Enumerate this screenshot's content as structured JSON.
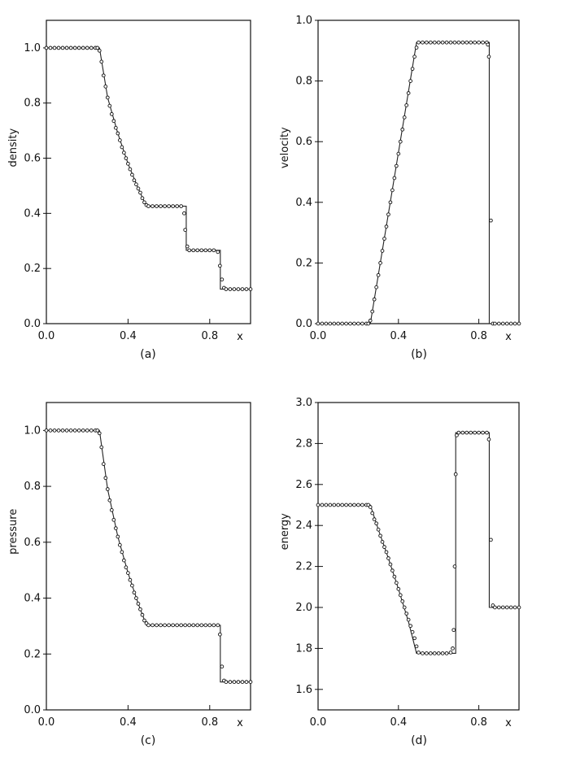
{
  "chart_data": [
    {
      "type": "line",
      "caption": "(a)",
      "xlabel": "x",
      "ylabel": "density",
      "xlim": [
        0.0,
        1.0
      ],
      "ylim": [
        0.0,
        1.1
      ],
      "xticks": [
        0.0,
        0.4,
        0.8
      ],
      "xtick_labels": [
        "0.0",
        "0.4",
        "0.8"
      ],
      "yticks": [
        0.0,
        0.2,
        0.4,
        0.6,
        0.8,
        1.0
      ],
      "ytick_labels": [
        "0.0",
        "0.2",
        "0.4",
        "0.6",
        "0.8",
        "1.0"
      ],
      "series": [
        {
          "style": "solid-line",
          "x": [
            0.0,
            0.26,
            0.3,
            0.35,
            0.4,
            0.45,
            0.49,
            0.685,
            0.685,
            0.852,
            0.852,
            1.0
          ],
          "y": [
            1.0,
            1.0,
            0.82,
            0.69,
            0.58,
            0.49,
            0.426,
            0.426,
            0.266,
            0.266,
            0.125,
            0.125
          ]
        },
        {
          "style": "open-circle-markers",
          "x": [
            0.0,
            0.02,
            0.04,
            0.06,
            0.08,
            0.1,
            0.12,
            0.14,
            0.16,
            0.18,
            0.2,
            0.22,
            0.24,
            0.25,
            0.26,
            0.27,
            0.28,
            0.29,
            0.3,
            0.31,
            0.32,
            0.33,
            0.34,
            0.35,
            0.36,
            0.37,
            0.38,
            0.39,
            0.4,
            0.41,
            0.42,
            0.43,
            0.44,
            0.45,
            0.46,
            0.47,
            0.48,
            0.49,
            0.5,
            0.52,
            0.54,
            0.56,
            0.58,
            0.6,
            0.62,
            0.64,
            0.66,
            0.675,
            0.68,
            0.69,
            0.7,
            0.72,
            0.74,
            0.76,
            0.78,
            0.8,
            0.82,
            0.84,
            0.85,
            0.86,
            0.87,
            0.88,
            0.9,
            0.92,
            0.94,
            0.96,
            0.98,
            1.0
          ],
          "y": [
            1.0,
            1.0,
            1.0,
            1.0,
            1.0,
            1.0,
            1.0,
            1.0,
            1.0,
            1.0,
            1.0,
            1.0,
            1.0,
            1.0,
            0.99,
            0.95,
            0.9,
            0.86,
            0.82,
            0.79,
            0.76,
            0.735,
            0.71,
            0.69,
            0.665,
            0.64,
            0.62,
            0.6,
            0.58,
            0.56,
            0.54,
            0.52,
            0.505,
            0.49,
            0.475,
            0.455,
            0.44,
            0.43,
            0.426,
            0.426,
            0.426,
            0.426,
            0.426,
            0.426,
            0.426,
            0.426,
            0.426,
            0.4,
            0.34,
            0.28,
            0.266,
            0.266,
            0.266,
            0.266,
            0.266,
            0.266,
            0.266,
            0.26,
            0.21,
            0.16,
            0.13,
            0.125,
            0.125,
            0.125,
            0.125,
            0.125,
            0.125,
            0.125
          ]
        }
      ]
    },
    {
      "type": "line",
      "caption": "(b)",
      "xlabel": "x",
      "ylabel": "velocity",
      "xlim": [
        0.0,
        1.0
      ],
      "ylim": [
        0.0,
        1.0
      ],
      "xticks": [
        0.0,
        0.4,
        0.8
      ],
      "xtick_labels": [
        "0.0",
        "0.4",
        "0.8"
      ],
      "yticks": [
        0.0,
        0.2,
        0.4,
        0.6,
        0.8,
        1.0
      ],
      "ytick_labels": [
        "0.0",
        "0.2",
        "0.4",
        "0.6",
        "0.8",
        "1.0"
      ],
      "series": [
        {
          "style": "solid-line",
          "x": [
            0.0,
            0.26,
            0.49,
            0.852,
            0.852,
            1.0
          ],
          "y": [
            0.0,
            0.0,
            0.927,
            0.927,
            0.0,
            0.0
          ]
        },
        {
          "style": "open-circle-markers",
          "x": [
            0.0,
            0.02,
            0.04,
            0.06,
            0.08,
            0.1,
            0.12,
            0.14,
            0.16,
            0.18,
            0.2,
            0.22,
            0.24,
            0.25,
            0.26,
            0.27,
            0.28,
            0.29,
            0.3,
            0.31,
            0.32,
            0.33,
            0.34,
            0.35,
            0.36,
            0.37,
            0.38,
            0.39,
            0.4,
            0.41,
            0.42,
            0.43,
            0.44,
            0.45,
            0.46,
            0.47,
            0.48,
            0.49,
            0.5,
            0.52,
            0.54,
            0.56,
            0.58,
            0.6,
            0.62,
            0.64,
            0.66,
            0.68,
            0.7,
            0.72,
            0.74,
            0.76,
            0.78,
            0.8,
            0.82,
            0.84,
            0.845,
            0.85,
            0.86,
            0.87,
            0.88,
            0.9,
            0.92,
            0.94,
            0.96,
            0.98,
            1.0
          ],
          "y": [
            0.0,
            0.0,
            0.0,
            0.0,
            0.0,
            0.0,
            0.0,
            0.0,
            0.0,
            0.0,
            0.0,
            0.0,
            0.0,
            0.0,
            0.01,
            0.04,
            0.08,
            0.12,
            0.16,
            0.2,
            0.24,
            0.28,
            0.32,
            0.36,
            0.4,
            0.44,
            0.48,
            0.52,
            0.56,
            0.6,
            0.64,
            0.68,
            0.72,
            0.76,
            0.8,
            0.84,
            0.88,
            0.91,
            0.927,
            0.927,
            0.927,
            0.927,
            0.927,
            0.927,
            0.927,
            0.927,
            0.927,
            0.927,
            0.927,
            0.927,
            0.927,
            0.927,
            0.927,
            0.927,
            0.927,
            0.927,
            0.92,
            0.88,
            0.34,
            0.0,
            0.0,
            0.0,
            0.0,
            0.0,
            0.0,
            0.0,
            0.0
          ]
        }
      ]
    },
    {
      "type": "line",
      "caption": "(c)",
      "xlabel": "x",
      "ylabel": "pressure",
      "xlim": [
        0.0,
        1.0
      ],
      "ylim": [
        0.0,
        1.1
      ],
      "xticks": [
        0.0,
        0.4,
        0.8
      ],
      "xtick_labels": [
        "0.0",
        "0.4",
        "0.8"
      ],
      "yticks": [
        0.0,
        0.2,
        0.4,
        0.6,
        0.8,
        1.0
      ],
      "ytick_labels": [
        "0.0",
        "0.2",
        "0.4",
        "0.6",
        "0.8",
        "1.0"
      ],
      "series": [
        {
          "style": "solid-line",
          "x": [
            0.0,
            0.26,
            0.3,
            0.35,
            0.4,
            0.45,
            0.49,
            0.852,
            0.852,
            1.0
          ],
          "y": [
            1.0,
            1.0,
            0.79,
            0.62,
            0.49,
            0.38,
            0.303,
            0.303,
            0.1,
            0.1
          ]
        },
        {
          "style": "open-circle-markers",
          "x": [
            0.0,
            0.02,
            0.04,
            0.06,
            0.08,
            0.1,
            0.12,
            0.14,
            0.16,
            0.18,
            0.2,
            0.22,
            0.24,
            0.25,
            0.26,
            0.27,
            0.28,
            0.29,
            0.3,
            0.31,
            0.32,
            0.33,
            0.34,
            0.35,
            0.36,
            0.37,
            0.38,
            0.39,
            0.4,
            0.41,
            0.42,
            0.43,
            0.44,
            0.45,
            0.46,
            0.47,
            0.48,
            0.49,
            0.5,
            0.52,
            0.54,
            0.56,
            0.58,
            0.6,
            0.62,
            0.64,
            0.66,
            0.68,
            0.7,
            0.72,
            0.74,
            0.76,
            0.78,
            0.8,
            0.82,
            0.84,
            0.85,
            0.86,
            0.87,
            0.88,
            0.9,
            0.92,
            0.94,
            0.96,
            0.98,
            1.0
          ],
          "y": [
            1.0,
            1.0,
            1.0,
            1.0,
            1.0,
            1.0,
            1.0,
            1.0,
            1.0,
            1.0,
            1.0,
            1.0,
            1.0,
            1.0,
            0.99,
            0.94,
            0.88,
            0.83,
            0.79,
            0.75,
            0.715,
            0.68,
            0.65,
            0.62,
            0.59,
            0.565,
            0.535,
            0.51,
            0.49,
            0.465,
            0.445,
            0.42,
            0.4,
            0.38,
            0.36,
            0.34,
            0.32,
            0.31,
            0.303,
            0.303,
            0.303,
            0.303,
            0.303,
            0.303,
            0.303,
            0.303,
            0.303,
            0.303,
            0.303,
            0.303,
            0.303,
            0.303,
            0.303,
            0.303,
            0.303,
            0.303,
            0.27,
            0.155,
            0.105,
            0.1,
            0.1,
            0.1,
            0.1,
            0.1,
            0.1,
            0.1
          ]
        }
      ]
    },
    {
      "type": "line",
      "caption": "(d)",
      "xlabel": "x",
      "ylabel": "energy",
      "xlim": [
        0.0,
        1.0
      ],
      "ylim": [
        1.5,
        3.0
      ],
      "xticks": [
        0.0,
        0.4,
        0.8
      ],
      "xtick_labels": [
        "0.0",
        "0.4",
        "0.8"
      ],
      "yticks": [
        1.6,
        1.8,
        2.0,
        2.2,
        2.4,
        2.6,
        2.8,
        3.0
      ],
      "ytick_labels": [
        "1.6",
        "1.8",
        "2.0",
        "2.2",
        "2.4",
        "2.6",
        "2.8",
        "3.0"
      ],
      "series": [
        {
          "style": "solid-line",
          "x": [
            0.0,
            0.26,
            0.3,
            0.35,
            0.4,
            0.45,
            0.49,
            0.685,
            0.685,
            0.852,
            0.852,
            1.0
          ],
          "y": [
            2.5,
            2.5,
            2.38,
            2.24,
            2.09,
            1.93,
            1.776,
            1.776,
            2.853,
            2.853,
            2.0,
            2.0
          ]
        },
        {
          "style": "open-circle-markers",
          "x": [
            0.0,
            0.02,
            0.04,
            0.06,
            0.08,
            0.1,
            0.12,
            0.14,
            0.16,
            0.18,
            0.2,
            0.22,
            0.24,
            0.25,
            0.26,
            0.27,
            0.28,
            0.29,
            0.3,
            0.31,
            0.32,
            0.33,
            0.34,
            0.35,
            0.36,
            0.37,
            0.38,
            0.39,
            0.4,
            0.41,
            0.42,
            0.43,
            0.44,
            0.45,
            0.46,
            0.47,
            0.48,
            0.49,
            0.5,
            0.52,
            0.54,
            0.56,
            0.58,
            0.6,
            0.62,
            0.64,
            0.66,
            0.67,
            0.675,
            0.68,
            0.685,
            0.69,
            0.7,
            0.72,
            0.74,
            0.76,
            0.78,
            0.8,
            0.82,
            0.84,
            0.85,
            0.86,
            0.87,
            0.88,
            0.9,
            0.92,
            0.94,
            0.96,
            0.98,
            1.0
          ],
          "y": [
            2.5,
            2.5,
            2.5,
            2.5,
            2.5,
            2.5,
            2.5,
            2.5,
            2.5,
            2.5,
            2.5,
            2.5,
            2.5,
            2.5,
            2.49,
            2.46,
            2.43,
            2.41,
            2.38,
            2.35,
            2.32,
            2.295,
            2.27,
            2.24,
            2.21,
            2.18,
            2.15,
            2.12,
            2.09,
            2.06,
            2.03,
            2.0,
            1.97,
            1.94,
            1.91,
            1.88,
            1.85,
            1.81,
            1.78,
            1.776,
            1.776,
            1.776,
            1.776,
            1.776,
            1.776,
            1.776,
            1.78,
            1.8,
            1.89,
            2.2,
            2.65,
            2.84,
            2.853,
            2.853,
            2.853,
            2.853,
            2.853,
            2.853,
            2.853,
            2.853,
            2.82,
            2.33,
            2.01,
            2.0,
            2.0,
            2.0,
            2.0,
            2.0,
            2.0,
            2.0
          ]
        }
      ]
    }
  ]
}
